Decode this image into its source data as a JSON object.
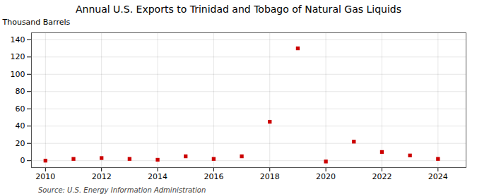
{
  "chart_data": {
    "type": "scatter",
    "title": "Annual U.S. Exports to Trinidad and Tobago of Natural Gas Liquids",
    "ylabel": "Thousand Barrels",
    "source": "Source: U.S. Energy Information Administration",
    "x": [
      2010,
      2011,
      2012,
      2013,
      2014,
      2015,
      2016,
      2017,
      2018,
      2019,
      2020,
      2021,
      2022,
      2023,
      2024
    ],
    "values": [
      0,
      2,
      3,
      2,
      1,
      5,
      2,
      5,
      45,
      130,
      -1,
      22,
      10,
      6,
      2
    ],
    "color": "#cc0000",
    "marker": "square",
    "xlim": [
      2009.5,
      2025.0
    ],
    "xticks": [
      2010,
      2012,
      2014,
      2016,
      2018,
      2020,
      2022,
      2024
    ],
    "ylim": [
      -8,
      148
    ],
    "yticks": [
      0,
      20,
      40,
      60,
      80,
      100,
      120,
      140
    ],
    "grid": true
  }
}
